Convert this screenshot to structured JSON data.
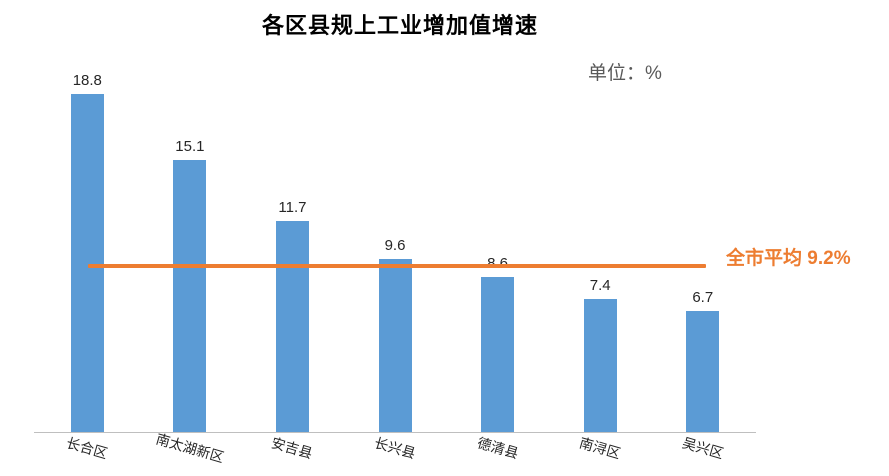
{
  "title": "各区县规上工业增加值增速",
  "unit_label": "单位：%",
  "chart_data": {
    "type": "bar",
    "title": "各区县规上工业增加值增速",
    "unit": "%",
    "categories": [
      "长合区",
      "南太湖新区",
      "安吉县",
      "长兴县",
      "德清县",
      "南浔区",
      "吴兴区"
    ],
    "values": [
      18.8,
      15.1,
      11.7,
      9.6,
      8.6,
      7.4,
      6.7
    ],
    "bar_color": "#5B9BD5",
    "average_line": {
      "value": 9.2,
      "label": "全市平均 9.2%",
      "color": "#ED7D31"
    },
    "ylim": [
      0,
      20
    ],
    "grid": false,
    "legend": "none",
    "xlabel": "",
    "ylabel": ""
  },
  "colors": {
    "background": "#FFFFFF",
    "title": "#000000",
    "unit_label": "#595959",
    "value_label": "#262626",
    "category_label": "#262626",
    "axis_line": "#BFBFBF",
    "bar": "#5B9BD5",
    "average_line": "#ED7D31"
  }
}
